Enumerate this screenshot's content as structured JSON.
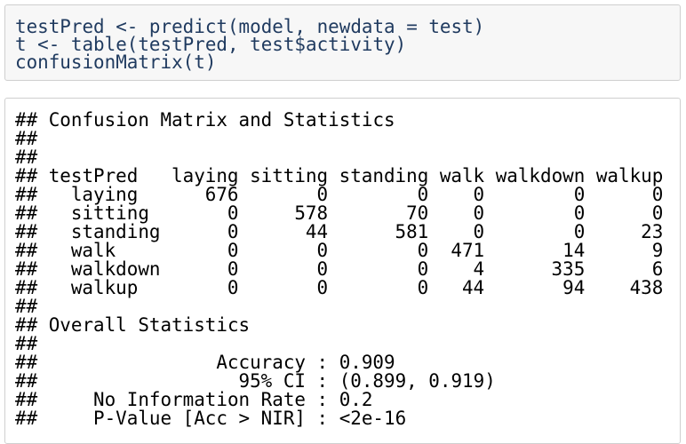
{
  "code": {
    "lines": [
      "testPred <- predict(model, newdata = test)",
      "t <- table(testPred, test$activity)",
      "confusionMatrix(t)"
    ]
  },
  "output": {
    "prefix": "##",
    "title": "Confusion Matrix and Statistics",
    "table": {
      "corner": "testPred",
      "columns": [
        "laying",
        "sitting",
        "standing",
        "walk",
        "walkdown",
        "walkup"
      ],
      "rows": [
        {
          "label": "laying",
          "values": [
            676,
            0,
            0,
            0,
            0,
            0
          ]
        },
        {
          "label": "sitting",
          "values": [
            0,
            578,
            70,
            0,
            0,
            0
          ]
        },
        {
          "label": "standing",
          "values": [
            0,
            44,
            581,
            0,
            0,
            23
          ]
        },
        {
          "label": "walk",
          "values": [
            0,
            0,
            0,
            471,
            14,
            9
          ]
        },
        {
          "label": "walkdown",
          "values": [
            0,
            0,
            0,
            4,
            335,
            6
          ]
        },
        {
          "label": "walkup",
          "values": [
            0,
            0,
            0,
            44,
            94,
            438
          ]
        }
      ]
    },
    "section": "Overall Statistics",
    "separator": ":",
    "stats": [
      {
        "label": "Accuracy",
        "value": 0.909
      },
      {
        "label": "95% CI",
        "value": "(0.899, 0.919)"
      },
      {
        "label": "No Information Rate",
        "value": 0.2
      },
      {
        "label": "P-Value [Acc > NIR]",
        "value": "<2e-16"
      }
    ]
  }
}
